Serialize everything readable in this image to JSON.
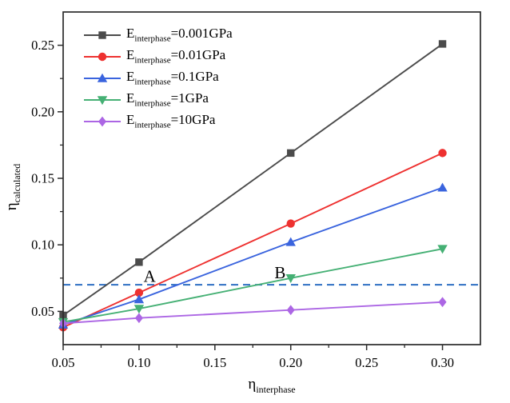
{
  "chart_data": {
    "type": "line",
    "title": "",
    "x": [
      0.05,
      0.1,
      0.2,
      0.3
    ],
    "series": [
      {
        "name": "E_interphase=0.001GPa",
        "label_pre": "E",
        "label_sub": "interphase",
        "label_post": "=0.001GPa",
        "color": "#4b4b4b",
        "marker": "square",
        "values": [
          0.047,
          0.087,
          0.169,
          0.251
        ]
      },
      {
        "name": "E_interphase=0.01GPa",
        "label_pre": "E",
        "label_sub": "interphase",
        "label_post": "=0.01GPa",
        "color": "#ee3130",
        "marker": "circle",
        "values": [
          0.038,
          0.064,
          0.116,
          0.169
        ]
      },
      {
        "name": "E_interphase=0.1GPa",
        "label_pre": "E",
        "label_sub": "interphase",
        "label_post": "=0.1GPa",
        "color": "#3a64de",
        "marker": "triangle-up",
        "values": [
          0.04,
          0.059,
          0.102,
          0.143
        ]
      },
      {
        "name": "E_interphase=1GPa",
        "label_pre": "E",
        "label_sub": "interphase",
        "label_post": "=1GPa",
        "color": "#45b074",
        "marker": "triangle-down",
        "values": [
          0.042,
          0.052,
          0.075,
          0.097
        ]
      },
      {
        "name": "E_interphase=10GPa",
        "label_pre": "E",
        "label_sub": "interphase",
        "label_post": "=10GPa",
        "color": "#ac66e4",
        "marker": "diamond",
        "values": [
          0.041,
          0.045,
          0.051,
          0.057
        ]
      }
    ],
    "xlabel_main": "η",
    "xlabel_sub": "interphase",
    "ylabel_main": "η",
    "ylabel_sub": "calculated",
    "xlim": [
      0.05,
      0.325
    ],
    "ylim": [
      0.025,
      0.275
    ],
    "x_ticks": [
      0.05,
      0.1,
      0.15,
      0.2,
      0.25,
      0.3
    ],
    "x_tick_labels": [
      "0.05",
      "0.10",
      "0.15",
      "0.20",
      "0.25",
      "0.30"
    ],
    "x_minor_ticks": [
      0.075,
      0.125,
      0.175,
      0.225,
      0.275
    ],
    "y_ticks": [
      0.05,
      0.1,
      0.15,
      0.2,
      0.25
    ],
    "y_tick_labels": [
      "0.05",
      "0.10",
      "0.15",
      "0.20",
      "0.25"
    ],
    "y_minor_ticks": [
      0.075,
      0.125,
      0.175,
      0.225
    ],
    "reference_line": {
      "y": 0.07,
      "style": "dashed",
      "color": "#2e6fc2"
    },
    "annotations": [
      {
        "text": "A",
        "x": 0.107,
        "y": 0.0765
      },
      {
        "text": "B",
        "x": 0.193,
        "y": 0.079
      }
    ],
    "axis_color": "#2b2b2b",
    "grid": false,
    "legend_position": "top-left-inside"
  }
}
